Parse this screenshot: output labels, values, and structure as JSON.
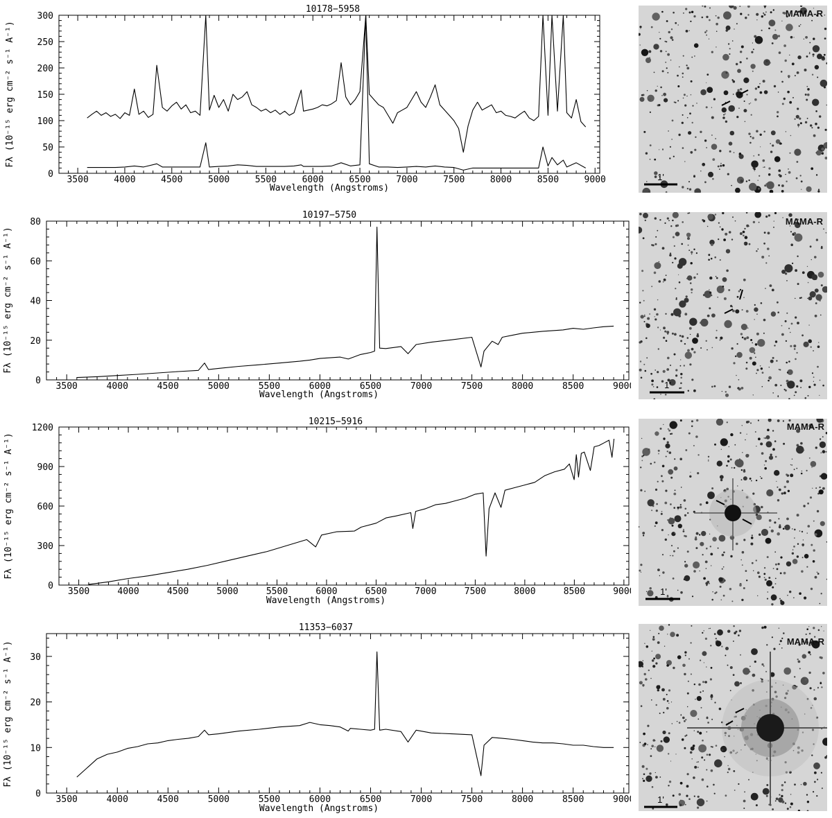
{
  "chart_data": [
    {
      "type": "line",
      "title": "10178−5958",
      "xlabel": "Wavelength (Angstroms)",
      "ylabel": "Fλ (10⁻¹⁵ erg cm⁻² s⁻¹ A⁻¹)",
      "xlim": [
        3300,
        9050
      ],
      "ylim": [
        0,
        300
      ],
      "xticks": [
        3500,
        4000,
        4500,
        5000,
        5500,
        6000,
        6500,
        7000,
        7500,
        8000,
        8500,
        9000
      ],
      "yticks": [
        0,
        50,
        100,
        150,
        200,
        250,
        300
      ],
      "series": [
        {
          "name": "",
          "x": [
            3600,
            3650,
            3700,
            3750,
            3800,
            3850,
            3900,
            3950,
            4000,
            4050,
            4102,
            4150,
            4200,
            4250,
            4300,
            4340,
            4400,
            4450,
            4500,
            4550,
            4600,
            4650,
            4700,
            4750,
            4800,
            4861,
            4900,
            4950,
            5000,
            5050,
            5100,
            5150,
            5200,
            5250,
            5300,
            5350,
            5400,
            5450,
            5500,
            5550,
            5600,
            5650,
            5700,
            5750,
            5800,
            5876,
            5900,
            5950,
            6000,
            6050,
            6100,
            6150,
            6200,
            6250,
            6300,
            6350,
            6400,
            6450,
            6500,
            6563,
            6600,
            6650,
            6700,
            6750,
            6800,
            6850,
            6900,
            6950,
            7000,
            7050,
            7100,
            7150,
            7200,
            7250,
            7300,
            7350,
            7400,
            7450,
            7500,
            7550,
            7600,
            7650,
            7700,
            7750,
            7800,
            7850,
            7900,
            7950,
            8000,
            8050,
            8100,
            8150,
            8200,
            8250,
            8300,
            8350,
            8400,
            8446,
            8500,
            8542,
            8600,
            8662,
            8700,
            8750,
            8800,
            8850,
            8900
          ],
          "y": [
            105,
            112,
            118,
            110,
            115,
            108,
            112,
            104,
            115,
            110,
            160,
            112,
            118,
            106,
            112,
            205,
            125,
            118,
            128,
            135,
            122,
            130,
            115,
            118,
            110,
            300,
            120,
            148,
            125,
            140,
            118,
            150,
            140,
            145,
            155,
            130,
            125,
            118,
            122,
            115,
            120,
            112,
            118,
            110,
            115,
            158,
            118,
            120,
            122,
            125,
            130,
            128,
            132,
            138,
            210,
            145,
            130,
            140,
            155,
            300,
            150,
            140,
            130,
            125,
            110,
            95,
            115,
            120,
            125,
            140,
            155,
            135,
            125,
            145,
            168,
            130,
            120,
            110,
            100,
            85,
            40,
            90,
            120,
            135,
            120,
            125,
            130,
            115,
            118,
            110,
            108,
            105,
            112,
            118,
            105,
            100,
            108,
            300,
            110,
            300,
            118,
            300,
            115,
            105,
            140,
            98,
            88
          ]
        },
        {
          "name": "",
          "x": [
            3600,
            3700,
            3800,
            3900,
            4000,
            4102,
            4200,
            4340,
            4400,
            4500,
            4600,
            4700,
            4800,
            4861,
            4900,
            5000,
            5100,
            5200,
            5300,
            5400,
            5500,
            5600,
            5700,
            5800,
            5876,
            5900,
            6000,
            6100,
            6200,
            6300,
            6400,
            6500,
            6563,
            6600,
            6700,
            6800,
            6900,
            7000,
            7100,
            7200,
            7300,
            7400,
            7500,
            7600,
            7700,
            7800,
            7900,
            8000,
            8100,
            8200,
            8300,
            8400,
            8446,
            8500,
            8542,
            8600,
            8662,
            8700,
            8800,
            8900
          ],
          "y": [
            11,
            11,
            11,
            11,
            12,
            14,
            12,
            18,
            12,
            12,
            12,
            12,
            12,
            58,
            12,
            13,
            14,
            16,
            15,
            13,
            13,
            13,
            13,
            14,
            16,
            13,
            13,
            13,
            14,
            20,
            14,
            16,
            300,
            18,
            12,
            12,
            11,
            12,
            13,
            12,
            14,
            12,
            11,
            6,
            10,
            10,
            10,
            10,
            10,
            10,
            10,
            10,
            50,
            14,
            30,
            16,
            25,
            12,
            20,
            10
          ]
        }
      ]
    },
    {
      "type": "line",
      "title": "10197−5750",
      "xlabel": "Wavelength (Angstroms)",
      "ylabel": "Fλ (10⁻¹⁵ erg cm⁻² s⁻¹ A⁻¹)",
      "xlim": [
        3300,
        9050
      ],
      "ylim": [
        0,
        80
      ],
      "xticks": [
        3500,
        4000,
        4500,
        5000,
        5500,
        6000,
        6500,
        7000,
        7500,
        8000,
        8500,
        9000
      ],
      "yticks": [
        0,
        20,
        40,
        60,
        80
      ],
      "series": [
        {
          "name": "",
          "x": [
            3600,
            3800,
            4000,
            4200,
            4400,
            4600,
            4800,
            4861,
            4900,
            5000,
            5200,
            5400,
            5600,
            5800,
            5900,
            6000,
            6200,
            6280,
            6400,
            6500,
            6540,
            6563,
            6590,
            6650,
            6800,
            6870,
            6950,
            7100,
            7300,
            7500,
            7590,
            7620,
            7700,
            7760,
            7800,
            7900,
            8000,
            8200,
            8400,
            8500,
            8600,
            8700,
            8800,
            8900
          ],
          "y": [
            1.2,
            1.6,
            2.2,
            2.8,
            3.5,
            4.2,
            4.8,
            8.5,
            5.2,
            5.8,
            6.8,
            7.6,
            8.5,
            9.4,
            10.0,
            10.8,
            11.5,
            10.5,
            12.8,
            13.8,
            14.5,
            77,
            16,
            15.8,
            16.8,
            13.2,
            17.8,
            19.0,
            20.2,
            21.5,
            6.5,
            14.5,
            19.5,
            17.8,
            21.5,
            22.5,
            23.5,
            24.5,
            25.2,
            26.0,
            25.5,
            26.2,
            26.8,
            27.1
          ]
        }
      ]
    },
    {
      "type": "line",
      "title": "10215−5916",
      "xlabel": "Wavelength (Angstroms)",
      "ylabel": "Fλ (10⁻¹⁵ erg cm⁻² s⁻¹ A⁻¹)",
      "xlim": [
        3300,
        9050
      ],
      "ylim": [
        0,
        1200
      ],
      "xticks": [
        3500,
        4000,
        4500,
        5000,
        5500,
        6000,
        6500,
        7000,
        7500,
        8000,
        8500,
        9000
      ],
      "yticks": [
        0,
        300,
        600,
        900,
        1200
      ],
      "series": [
        {
          "name": "",
          "x": [
            3600,
            3800,
            4000,
            4200,
            4400,
            4600,
            4800,
            5000,
            5200,
            5400,
            5600,
            5800,
            5890,
            5950,
            6100,
            6280,
            6350,
            6500,
            6600,
            6700,
            6850,
            6870,
            6900,
            7000,
            7100,
            7200,
            7300,
            7400,
            7500,
            7580,
            7610,
            7640,
            7700,
            7760,
            7800,
            7900,
            8000,
            8100,
            8200,
            8300,
            8400,
            8450,
            8498,
            8520,
            8542,
            8570,
            8600,
            8662,
            8700,
            8750,
            8800,
            8850,
            8880,
            8900
          ],
          "y": [
            5,
            25,
            50,
            70,
            95,
            120,
            150,
            185,
            220,
            255,
            300,
            345,
            290,
            380,
            405,
            410,
            440,
            470,
            510,
            525,
            550,
            430,
            560,
            580,
            610,
            620,
            640,
            660,
            690,
            700,
            220,
            580,
            700,
            590,
            720,
            740,
            760,
            780,
            830,
            860,
            880,
            920,
            800,
            990,
            820,
            1000,
            1010,
            870,
            1050,
            1060,
            1080,
            1100,
            970,
            1110
          ]
        }
      ]
    },
    {
      "type": "line",
      "title": "11353−6037",
      "xlabel": "Wavelength (Angstroms)",
      "ylabel": "Fλ (10⁻¹⁵ erg cm⁻² s⁻¹ A⁻¹)",
      "xlim": [
        3300,
        9050
      ],
      "ylim": [
        0,
        35
      ],
      "xticks": [
        3500,
        4000,
        4500,
        5000,
        5500,
        6000,
        6500,
        7000,
        7500,
        8000,
        8500,
        9000
      ],
      "yticks": [
        0,
        10,
        20,
        30
      ],
      "series": [
        {
          "name": "",
          "x": [
            3600,
            3700,
            3800,
            3900,
            4000,
            4100,
            4200,
            4300,
            4400,
            4500,
            4600,
            4700,
            4800,
            4861,
            4900,
            5000,
            5200,
            5400,
            5600,
            5800,
            5900,
            6000,
            6100,
            6200,
            6280,
            6300,
            6400,
            6500,
            6540,
            6563,
            6590,
            6650,
            6800,
            6870,
            6950,
            7100,
            7300,
            7500,
            7590,
            7620,
            7700,
            7800,
            7900,
            8000,
            8100,
            8200,
            8300,
            8400,
            8500,
            8600,
            8700,
            8800,
            8900
          ],
          "y": [
            3.5,
            5.5,
            7.5,
            8.5,
            9.0,
            9.8,
            10.2,
            10.8,
            11.0,
            11.5,
            11.8,
            12.0,
            12.4,
            13.8,
            12.8,
            13.0,
            13.6,
            14.0,
            14.5,
            14.8,
            15.5,
            15.0,
            14.8,
            14.5,
            13.6,
            14.2,
            14.0,
            13.8,
            14.0,
            31,
            13.8,
            14.0,
            13.5,
            11.2,
            13.8,
            13.2,
            13.0,
            12.8,
            3.8,
            10.5,
            12.2,
            12.0,
            11.8,
            11.5,
            11.2,
            11.0,
            11.0,
            10.8,
            10.5,
            10.5,
            10.2,
            10.0,
            10.0
          ]
        }
      ]
    }
  ],
  "finding_charts": [
    {
      "label": "MAMA-R",
      "scale": "1'",
      "bright_source": false
    },
    {
      "label": "MAMA-R",
      "scale": "1'",
      "bright_source": false
    },
    {
      "label": "MAMA-R",
      "scale": "1'",
      "bright_source": true
    },
    {
      "label": "MAMA-R",
      "scale": "1'",
      "bright_source": true
    }
  ]
}
